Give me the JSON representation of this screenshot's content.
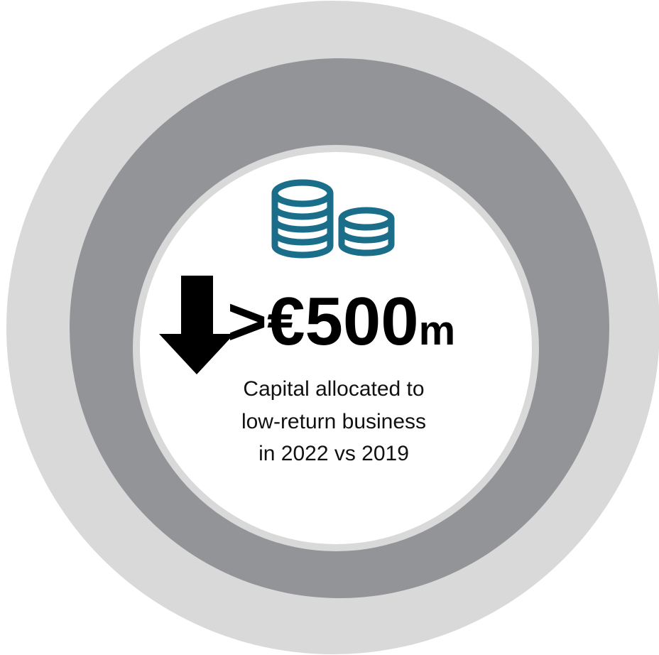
{
  "headline": {
    "value": ">€500",
    "unit": "m"
  },
  "caption": [
    "Capital allocated to",
    "low-return business",
    "in 2022 vs 2019"
  ]
}
